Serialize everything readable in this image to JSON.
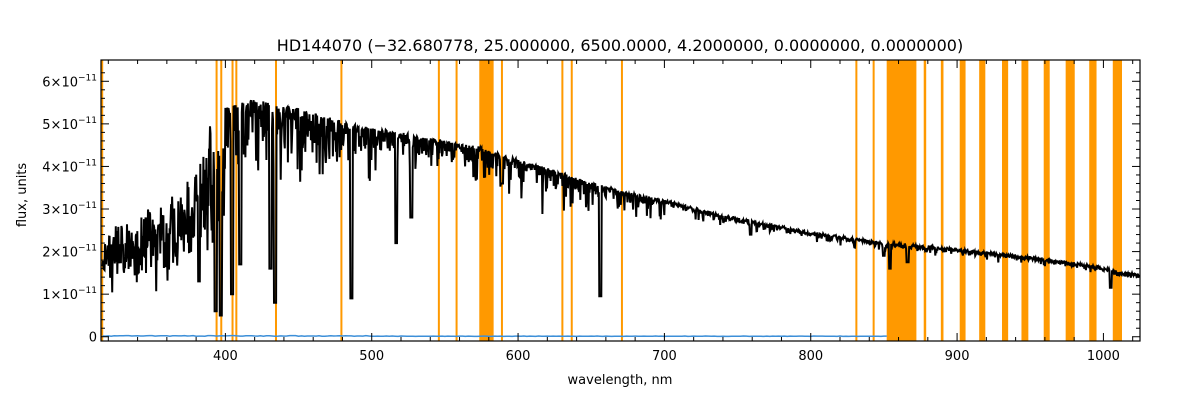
{
  "chart_data": {
    "type": "line",
    "title": "HD144070   (−32.680778, 25.000000, 6500.0000, 4.2000000, 0.0000000, 0.0000000)",
    "xlabel": "wavelength, nm",
    "ylabel": "flux, units",
    "xlim": [
      315,
      1025
    ],
    "ylim": [
      -1e-12,
      6.5e-11
    ],
    "x_ticks": [
      {
        "value": 400,
        "label": "400"
      },
      {
        "value": 500,
        "label": "500"
      },
      {
        "value": 600,
        "label": "600"
      },
      {
        "value": 700,
        "label": "700"
      },
      {
        "value": 800,
        "label": "800"
      },
      {
        "value": 900,
        "label": "900"
      },
      {
        "value": 1000,
        "label": "1000"
      }
    ],
    "y_ticks": [
      {
        "value": 0,
        "base": "0",
        "exp": ""
      },
      {
        "value": 1e-11,
        "base": "1×10",
        "exp": "−11"
      },
      {
        "value": 2e-11,
        "base": "2×10",
        "exp": "−11"
      },
      {
        "value": 3e-11,
        "base": "3×10",
        "exp": "−11"
      },
      {
        "value": 4e-11,
        "base": "4×10",
        "exp": "−11"
      },
      {
        "value": 5e-11,
        "base": "5×10",
        "exp": "−11"
      },
      {
        "value": 6e-11,
        "base": "6×10",
        "exp": "−11"
      }
    ],
    "grid": false,
    "masked_regions": [
      [
        315,
        316.5
      ],
      [
        393.3,
        394.2
      ],
      [
        396.5,
        397.4
      ],
      [
        404.2,
        405.0
      ],
      [
        406.8,
        407.6
      ],
      [
        433.9,
        434.8
      ],
      [
        478.6,
        479.4
      ],
      [
        545.2,
        546.0
      ],
      [
        557.3,
        558.1
      ],
      [
        573.5,
        583.3
      ],
      [
        588.3,
        589.6
      ],
      [
        629.6,
        630.5
      ],
      [
        636.0,
        636.8
      ],
      [
        670.3,
        671.1
      ],
      [
        830.5,
        831.3
      ],
      [
        842.3,
        843.1
      ],
      [
        851.9,
        872.2
      ],
      [
        877.2,
        878.9
      ],
      [
        888.9,
        890.7
      ],
      [
        901.8,
        905.8
      ],
      [
        915.1,
        919.3
      ],
      [
        930.7,
        934.9
      ],
      [
        944.0,
        948.7
      ],
      [
        959.2,
        963.3
      ],
      [
        974.2,
        980.4
      ],
      [
        990.3,
        995.3
      ],
      [
        1006.4,
        1012.7
      ]
    ],
    "series": [
      {
        "color": "#000000",
        "envelope": [
          [
            316,
            2.2e-11
          ],
          [
            320,
            2.6e-11
          ],
          [
            330,
            2.8e-11
          ],
          [
            340,
            2.9e-11
          ],
          [
            350,
            3.1e-11
          ],
          [
            360,
            3.3e-11
          ],
          [
            370,
            3.6e-11
          ],
          [
            375,
            4e-11
          ],
          [
            380,
            4.4e-11
          ],
          [
            385,
            4.8e-11
          ],
          [
            390,
            5.2e-11
          ],
          [
            395,
            4.8e-11
          ],
          [
            400,
            5.4e-11
          ],
          [
            410,
            5.5e-11
          ],
          [
            420,
            5.55e-11
          ],
          [
            430,
            5.5e-11
          ],
          [
            440,
            5.45e-11
          ],
          [
            450,
            5.35e-11
          ],
          [
            460,
            5.25e-11
          ],
          [
            470,
            5.15e-11
          ],
          [
            480,
            5.05e-11
          ],
          [
            490,
            4.95e-11
          ],
          [
            500,
            4.9e-11
          ],
          [
            520,
            4.78e-11
          ],
          [
            540,
            4.66e-11
          ],
          [
            560,
            4.52e-11
          ],
          [
            575,
            4.45e-11
          ],
          [
            580,
            4.35e-11
          ],
          [
            600,
            4.15e-11
          ],
          [
            620,
            3.95e-11
          ],
          [
            640,
            3.72e-11
          ],
          [
            660,
            3.52e-11
          ],
          [
            680,
            3.35e-11
          ],
          [
            700,
            3.2e-11
          ],
          [
            720,
            3.02e-11
          ],
          [
            740,
            2.85e-11
          ],
          [
            760,
            2.7e-11
          ],
          [
            780,
            2.58e-11
          ],
          [
            800,
            2.45e-11
          ],
          [
            820,
            2.35e-11
          ],
          [
            840,
            2.25e-11
          ],
          [
            852,
            2.2e-11
          ],
          [
            870,
            2.15e-11
          ],
          [
            880,
            2.12e-11
          ],
          [
            900,
            2.05e-11
          ],
          [
            920,
            1.98e-11
          ],
          [
            940,
            1.9e-11
          ],
          [
            960,
            1.82e-11
          ],
          [
            980,
            1.72e-11
          ],
          [
            1000,
            1.62e-11
          ],
          [
            1010,
            1.52e-11
          ],
          [
            1025,
            1.45e-11
          ]
        ],
        "absorption_lines": [
          {
            "x": 382.0,
            "y": 1.3e-11
          },
          {
            "x": 393.4,
            "y": 6e-12
          },
          {
            "x": 396.8,
            "y": 5e-12
          },
          {
            "x": 404.5,
            "y": 1e-11
          },
          {
            "x": 410.2,
            "y": 1.7e-11
          },
          {
            "x": 430.8,
            "y": 1.6e-11
          },
          {
            "x": 434.0,
            "y": 8e-12
          },
          {
            "x": 486.1,
            "y": 9e-12
          },
          {
            "x": 516.8,
            "y": 2.2e-11
          },
          {
            "x": 527.0,
            "y": 2.8e-11
          },
          {
            "x": 589.0,
            "y": 3.6e-11
          },
          {
            "x": 656.3,
            "y": 9.5e-12
          },
          {
            "x": 759.0,
            "y": 2.4e-11
          },
          {
            "x": 850.0,
            "y": 1.9e-11
          },
          {
            "x": 854.2,
            "y": 1.6e-11
          },
          {
            "x": 866.2,
            "y": 1.75e-11
          },
          {
            "x": 1005.0,
            "y": 1.15e-11
          }
        ]
      },
      {
        "color": "#3c8fd8",
        "level": 2e-13
      }
    ]
  }
}
